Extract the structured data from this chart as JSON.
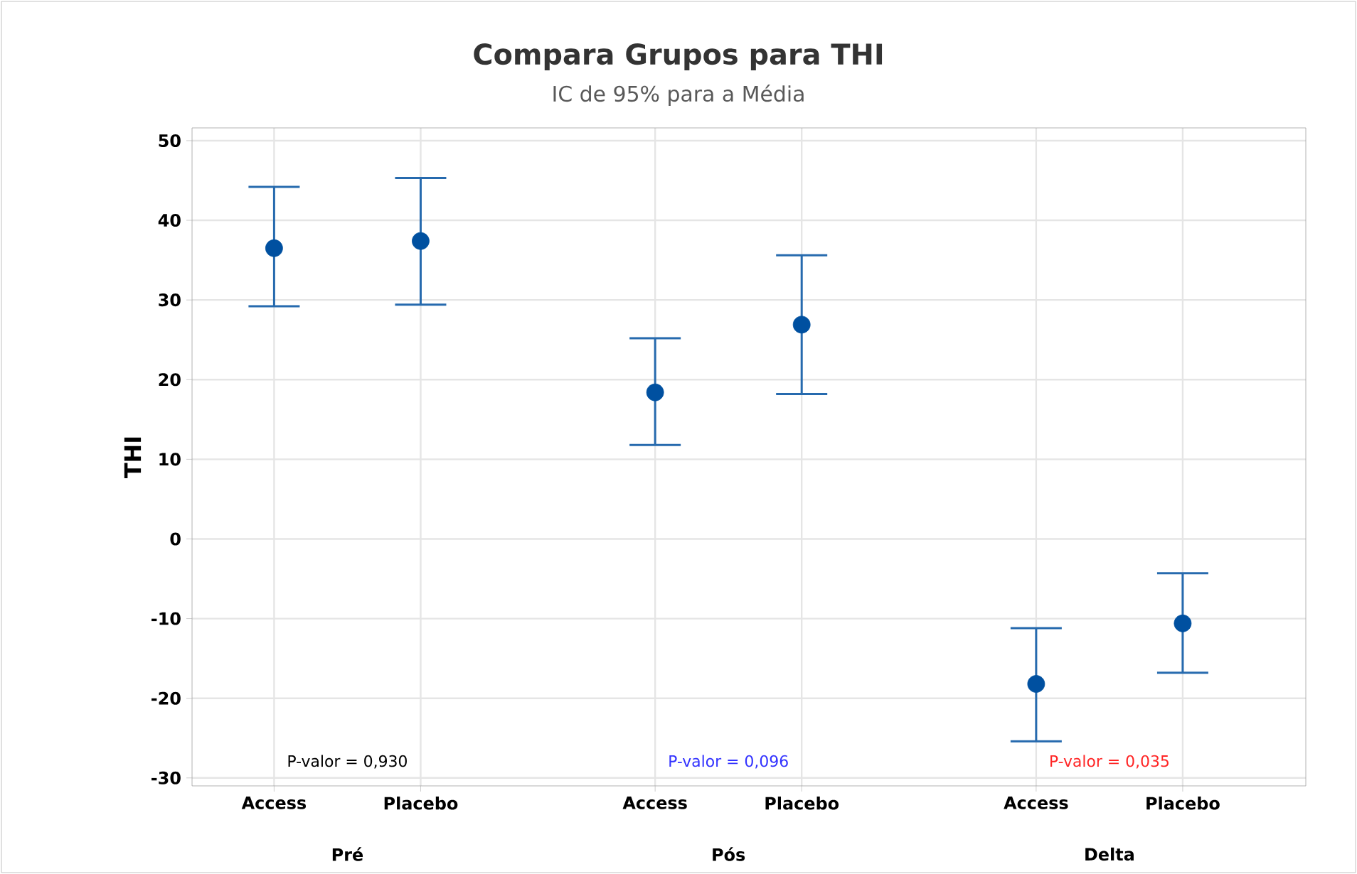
{
  "chart_data": {
    "type": "scatter",
    "title": "Compara Grupos para THI",
    "subtitle": "IC de 95% para a Média",
    "ylabel": "THI",
    "categories": [
      "Access",
      "Placebo",
      "Access",
      "Placebo",
      "Access",
      "Placebo"
    ],
    "series": [
      {
        "color": "#0050a0",
        "values": [
          36.5,
          37.4,
          18.4,
          26.9,
          -18.2,
          -10.6
        ],
        "errors": [
          [
            29.2,
            44.2
          ],
          [
            29.4,
            45.3
          ],
          [
            11.8,
            25.2
          ],
          [
            18.2,
            35.6
          ],
          [
            -25.4,
            -11.2
          ],
          [
            -16.8,
            -4.3
          ]
        ]
      }
    ],
    "ylim": [
      -31,
      51.6
    ],
    "yticks": [
      -30,
      -20,
      -10,
      0,
      10,
      20,
      30,
      40,
      50
    ],
    "grid": true,
    "marker": "circle",
    "annotations": [
      "Pré",
      "Pós",
      "Delta",
      "P-valor = 0,930",
      "P-valor = 0,096",
      "P-valor = 0,035"
    ]
  }
}
